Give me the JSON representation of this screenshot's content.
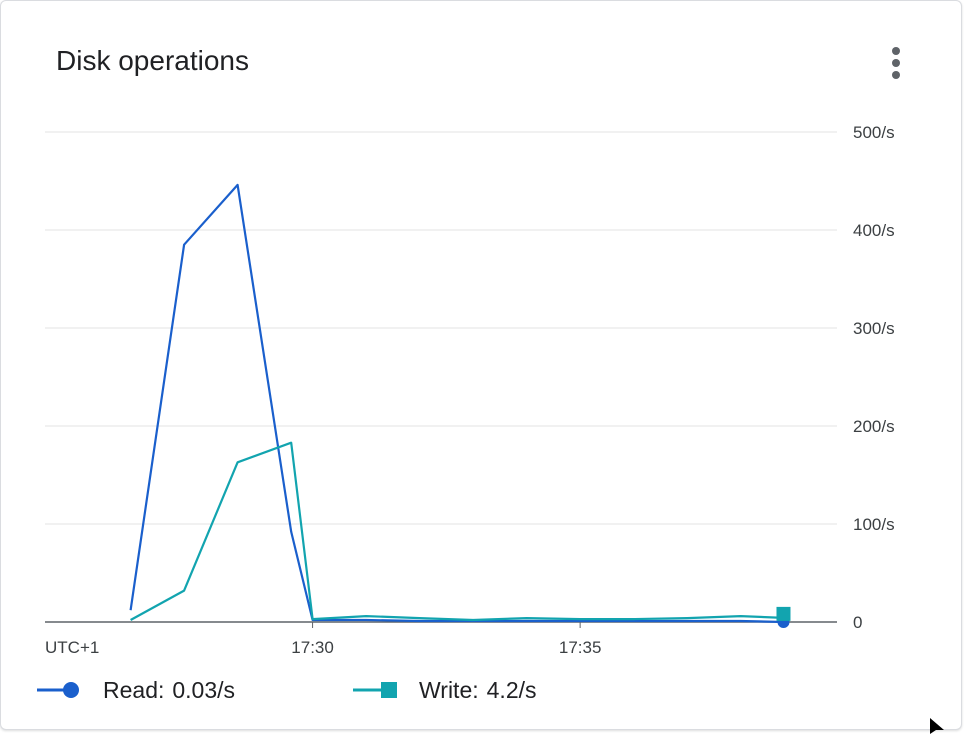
{
  "card": {
    "title": "Disk operations",
    "menu_icon": "more-vert-icon"
  },
  "chart_data": {
    "type": "line",
    "title": "Disk operations",
    "x_ticks": [
      "UTC+1",
      "17:30",
      "17:35"
    ],
    "x_tick_minutes": [
      null,
      30,
      35
    ],
    "xlim_minutes": [
      25.0,
      39.8
    ],
    "x_minutes": [
      26.6,
      27.6,
      28.6,
      29.6,
      30.0,
      31.0,
      32.0,
      33.0,
      34.0,
      35.0,
      36.0,
      37.0,
      38.0,
      38.8
    ],
    "ylim": [
      0,
      500
    ],
    "y_ticks": [
      0,
      100,
      200,
      300,
      400,
      500
    ],
    "y_tick_labels": [
      "0",
      "100/s",
      "200/s",
      "300/s",
      "400/s",
      "500/s"
    ],
    "grid": true,
    "legend_position": "bottom",
    "series": [
      {
        "name": "Read",
        "color": "#1a5fcc",
        "marker": "circle",
        "values": [
          12,
          385,
          446,
          92,
          2,
          2,
          1,
          1,
          1,
          1,
          1,
          1,
          1,
          0.03
        ]
      },
      {
        "name": "Write",
        "color": "#12a4af",
        "marker": "square",
        "values": [
          2,
          32,
          163,
          183,
          3,
          6,
          4,
          2,
          4,
          3,
          3,
          4,
          6,
          4.2
        ]
      }
    ]
  },
  "legend": {
    "items": [
      {
        "label": "Read:",
        "value": "0.03/s"
      },
      {
        "label": "Write:",
        "value": "4.2/s"
      }
    ]
  }
}
